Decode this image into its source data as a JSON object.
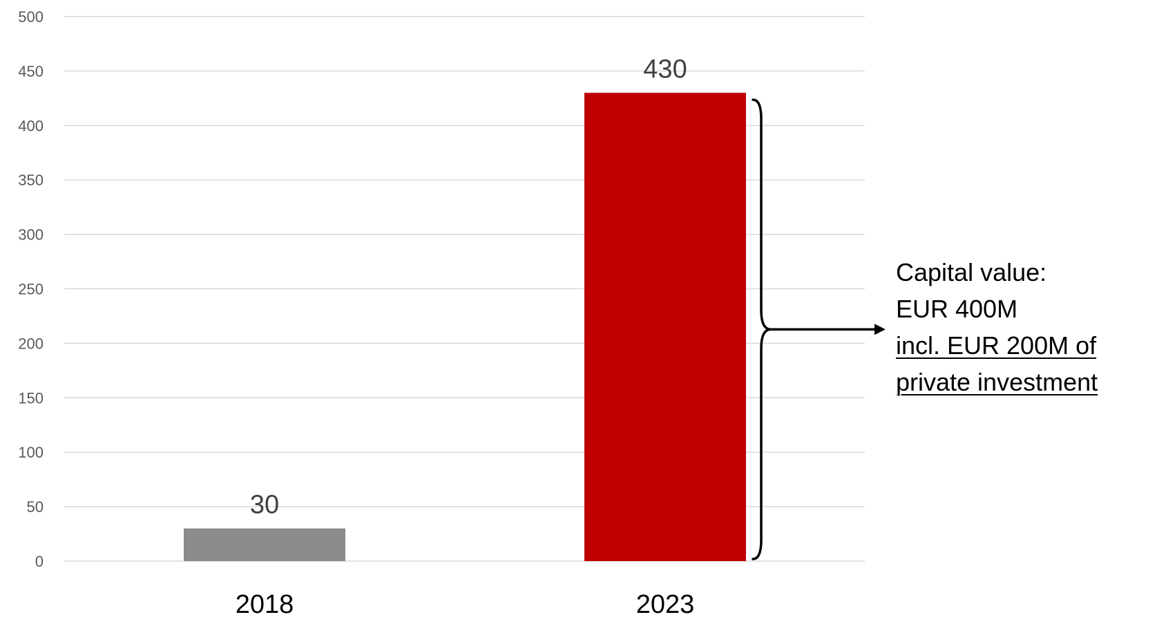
{
  "chart_data": {
    "type": "bar",
    "categories": [
      "2018",
      "2023"
    ],
    "values": [
      30,
      430
    ],
    "data_labels": [
      "30",
      "430"
    ],
    "bar_colors": [
      "#8c8c8c",
      "#c00000"
    ],
    "ylim": [
      0,
      500
    ],
    "yticks": [
      0,
      50,
      100,
      150,
      200,
      250,
      300,
      350,
      400,
      450,
      500
    ],
    "ytick_labels": [
      "0",
      "50",
      "100",
      "150",
      "200",
      "250",
      "300",
      "350",
      "400",
      "450",
      "500"
    ],
    "grid": true,
    "legend": "none",
    "title": "",
    "xlabel": "",
    "ylabel": "",
    "annotation": {
      "lines": [
        "Capital value:",
        "EUR 400M",
        "incl. EUR 200M of",
        "private investment"
      ],
      "underlined_lines": [
        2,
        3
      ],
      "bracket_target_category": "2023"
    }
  }
}
